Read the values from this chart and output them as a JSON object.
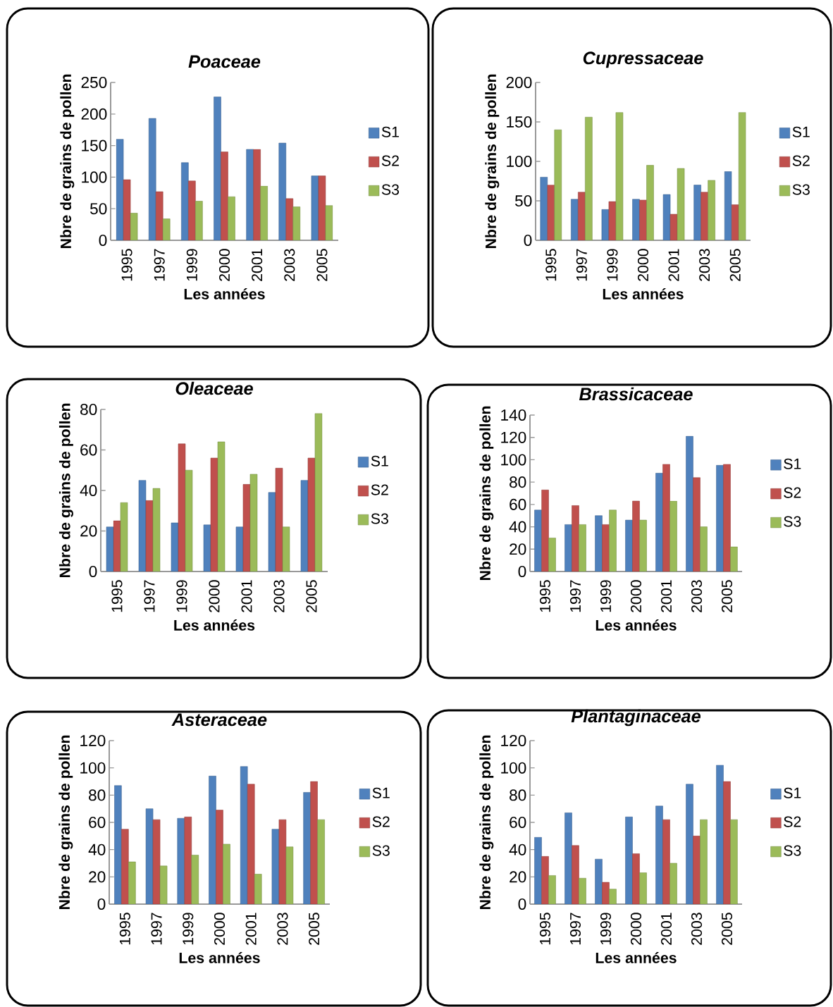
{
  "chart_data": [
    {
      "type": "bar",
      "title": "Poaceae",
      "xlabel": "Les années",
      "ylabel": "Nbre de grains de pollen",
      "categories": [
        "1995",
        "1997",
        "1999",
        "2000",
        "2001",
        "2003",
        "2005"
      ],
      "ylim": [
        0,
        250
      ],
      "yticks": [
        0,
        50,
        100,
        150,
        200,
        250
      ],
      "legend": "right",
      "series": [
        {
          "name": "S1",
          "color": "#4f81bd",
          "values": [
            160,
            193,
            123,
            227,
            144,
            154,
            102
          ]
        },
        {
          "name": "S2",
          "color": "#c0504d",
          "values": [
            96,
            77,
            94,
            140,
            144,
            66,
            102
          ]
        },
        {
          "name": "S3",
          "color": "#9bbb59",
          "values": [
            43,
            34,
            62,
            69,
            86,
            53,
            55
          ]
        }
      ]
    },
    {
      "type": "bar",
      "title": "Cupressaceae",
      "xlabel": "Les années",
      "ylabel": "Nbre de grains de pollen",
      "categories": [
        "1995",
        "1997",
        "1999",
        "2000",
        "2001",
        "2003",
        "2005"
      ],
      "ylim": [
        0,
        200
      ],
      "yticks": [
        0,
        50,
        100,
        150,
        200
      ],
      "legend": "right",
      "series": [
        {
          "name": "S1",
          "color": "#4f81bd",
          "values": [
            80,
            52,
            39,
            52,
            58,
            70,
            87
          ]
        },
        {
          "name": "S2",
          "color": "#c0504d",
          "values": [
            70,
            61,
            49,
            51,
            33,
            61,
            45
          ]
        },
        {
          "name": "S3",
          "color": "#9bbb59",
          "values": [
            140,
            156,
            162,
            95,
            91,
            76,
            162
          ]
        }
      ]
    },
    {
      "type": "bar",
      "title": "Oleaceae",
      "xlabel": "Les années",
      "ylabel": "Nbre de grains de pollen",
      "categories": [
        "1995",
        "1997",
        "1999",
        "2000",
        "2001",
        "2003",
        "2005"
      ],
      "ylim": [
        0,
        80
      ],
      "yticks": [
        0,
        20,
        40,
        60,
        80
      ],
      "legend": "right",
      "series": [
        {
          "name": "S1",
          "color": "#4f81bd",
          "values": [
            22,
            45,
            24,
            23,
            22,
            39,
            45
          ]
        },
        {
          "name": "S2",
          "color": "#c0504d",
          "values": [
            25,
            35,
            63,
            56,
            43,
            51,
            56
          ]
        },
        {
          "name": "S3",
          "color": "#9bbb59",
          "values": [
            34,
            41,
            50,
            64,
            48,
            22,
            78
          ]
        }
      ]
    },
    {
      "type": "bar",
      "title": "Brassicaceae",
      "xlabel": "Les années",
      "ylabel": "Nbre de grains de pollen",
      "categories": [
        "1995",
        "1997",
        "1999",
        "2000",
        "2001",
        "2003",
        "2005"
      ],
      "ylim": [
        0,
        140
      ],
      "yticks": [
        0,
        20,
        40,
        60,
        80,
        100,
        120,
        140
      ],
      "legend": "right",
      "series": [
        {
          "name": "S1",
          "color": "#4f81bd",
          "values": [
            55,
            42,
            50,
            46,
            88,
            121,
            95
          ]
        },
        {
          "name": "S2",
          "color": "#c0504d",
          "values": [
            73,
            59,
            42,
            63,
            96,
            84,
            96
          ]
        },
        {
          "name": "S3",
          "color": "#9bbb59",
          "values": [
            30,
            42,
            55,
            46,
            63,
            40,
            22
          ]
        }
      ]
    },
    {
      "type": "bar",
      "title": "Asteraceae",
      "xlabel": "Les années",
      "ylabel": "Nbre de grains de pollen",
      "categories": [
        "1995",
        "1997",
        "1999",
        "2000",
        "2001",
        "2003",
        "2005"
      ],
      "ylim": [
        0,
        120
      ],
      "yticks": [
        0,
        20,
        40,
        60,
        80,
        100,
        120
      ],
      "legend": "right",
      "series": [
        {
          "name": "S1",
          "color": "#4f81bd",
          "values": [
            87,
            70,
            63,
            94,
            101,
            55,
            82
          ]
        },
        {
          "name": "S2",
          "color": "#c0504d",
          "values": [
            55,
            62,
            64,
            69,
            88,
            62,
            90
          ]
        },
        {
          "name": "S3",
          "color": "#9bbb59",
          "values": [
            31,
            28,
            36,
            44,
            22,
            42,
            62
          ]
        }
      ]
    },
    {
      "type": "bar",
      "title": "Plantaginaceae",
      "xlabel": "Les années",
      "ylabel": "Nbre de grains de pollen",
      "categories": [
        "1995",
        "1997",
        "1999",
        "2000",
        "2001",
        "2003",
        "2005"
      ],
      "ylim": [
        0,
        120
      ],
      "yticks": [
        0,
        20,
        40,
        60,
        80,
        100,
        120
      ],
      "legend": "right",
      "series": [
        {
          "name": "S1",
          "color": "#4f81bd",
          "values": [
            49,
            67,
            33,
            64,
            72,
            88,
            102
          ]
        },
        {
          "name": "S2",
          "color": "#c0504d",
          "values": [
            35,
            43,
            16,
            37,
            62,
            50,
            90
          ]
        },
        {
          "name": "S3",
          "color": "#9bbb59",
          "values": [
            21,
            19,
            11,
            23,
            30,
            62,
            62
          ]
        }
      ]
    }
  ]
}
